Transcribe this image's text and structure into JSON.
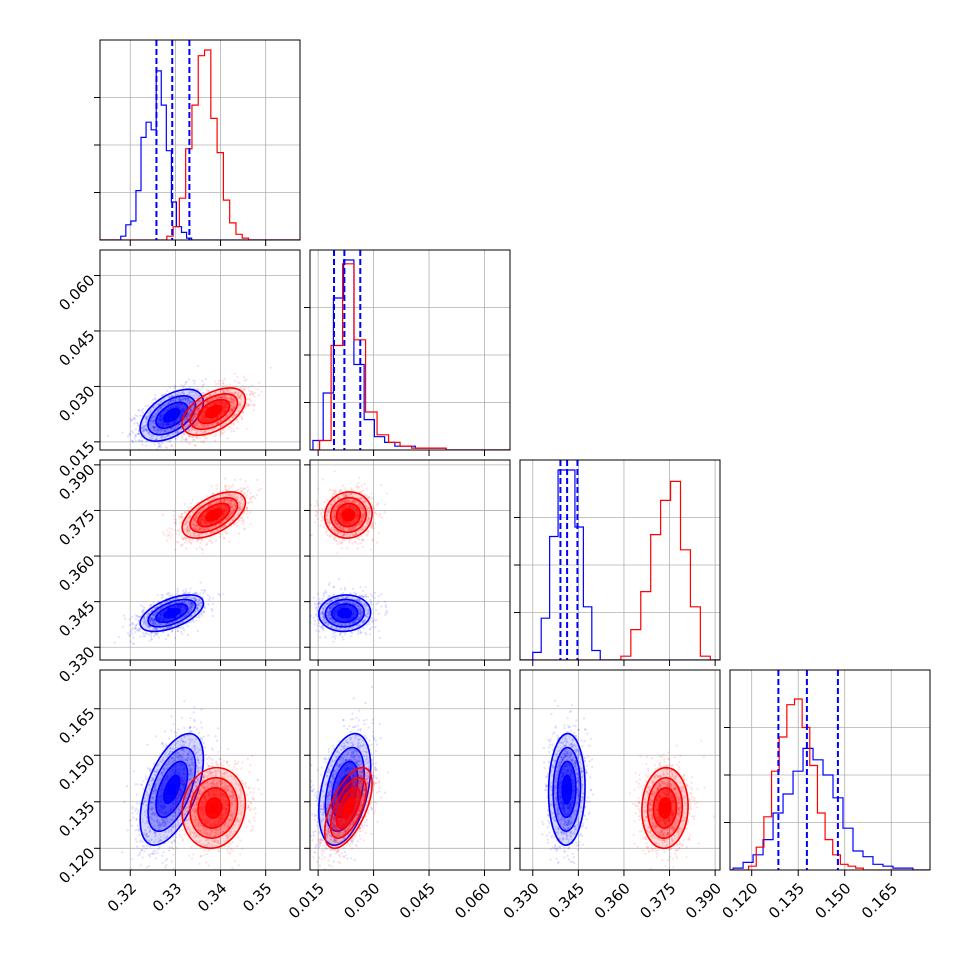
{
  "chart_data": {
    "type": "corner",
    "params": 4,
    "colors": {
      "a": "#0000ff",
      "b": "#ff0000",
      "grid": "#b0b0b0",
      "axes": "#000000"
    },
    "ranges": [
      [
        0.3133,
        0.3576
      ],
      [
        0.0128,
        0.0669
      ],
      [
        0.3258,
        0.3916
      ],
      [
        0.113,
        0.1775
      ]
    ],
    "ticks": [
      {
        "values": [
          0.32,
          0.33,
          0.34,
          0.35
        ],
        "labels": [
          "0.32",
          "0.33",
          "0.34",
          "0.35"
        ]
      },
      {
        "values": [
          0.015,
          0.03,
          0.045,
          0.06
        ],
        "labels": [
          "0.015",
          "0.030",
          "0.045",
          "0.060"
        ]
      },
      {
        "values": [
          0.33,
          0.345,
          0.36,
          0.375,
          0.39
        ],
        "labels": [
          "0.330",
          "0.345",
          "0.360",
          "0.375",
          "0.390"
        ]
      },
      {
        "values": [
          0.12,
          0.135,
          0.15,
          0.165
        ],
        "labels": [
          "0.120",
          "0.135",
          "0.150",
          "0.165"
        ]
      }
    ],
    "quantiles": [
      [
        0.3258,
        0.3293,
        0.3331
      ],
      [
        0.0193,
        0.0221,
        0.0264
      ],
      [
        0.3391,
        0.3413,
        0.3447
      ],
      [
        0.1286,
        0.1378,
        0.1478
      ]
    ],
    "series": [
      {
        "id": "a",
        "means": [
          0.3292,
          0.0222,
          0.3412,
          0.139
        ],
        "sds": [
          0.0035,
          0.0035,
          0.003,
          0.009
        ],
        "hist": [
          {
            "edges": [
              0.3179,
              0.3336
            ],
            "counts": [
              0.02,
              0.08,
              0.1,
              0.26,
              0.54,
              0.62,
              0.58,
              0.89,
              0.71,
              0.47,
              0.2,
              0.07,
              0.04,
              0.01
            ]
          },
          {
            "edges": [
              0.0136,
              0.0496
            ],
            "counts": [
              0.05,
              0.3,
              0.8,
              1.0,
              0.45,
              0.16,
              0.07,
              0.04,
              0.02,
              0.02,
              0.01,
              0.01,
              0.01
            ]
          },
          {
            "edges": [
              0.33,
              0.3522
            ],
            "counts": [
              0.04,
              0.22,
              0.65,
              1.0,
              1.0,
              0.7,
              0.28,
              0.05
            ]
          },
          {
            "edges": [
              0.114,
              0.172
            ],
            "counts": [
              0.01,
              0.04,
              0.08,
              0.16,
              0.3,
              0.4,
              0.52,
              0.64,
              0.58,
              0.5,
              0.38,
              0.22,
              0.1,
              0.07,
              0.03,
              0.02,
              0.01,
              0.01
            ]
          }
        ],
        "pairs": [
          {
            "i": 1,
            "j": 0,
            "r": 0.5
          },
          {
            "i": 2,
            "j": 0,
            "r": 0.55
          },
          {
            "i": 2,
            "j": 1,
            "r": 0.05
          },
          {
            "i": 3,
            "j": 0,
            "r": 0.55
          },
          {
            "i": 3,
            "j": 1,
            "r": 0.4
          },
          {
            "i": 3,
            "j": 2,
            "r": 0.05
          }
        ]
      },
      {
        "id": "b",
        "means": [
          0.3385,
          0.0232,
          0.3735,
          0.133
        ],
        "sds": [
          0.0035,
          0.0032,
          0.0038,
          0.0065
        ],
        "hist": [
          {
            "edges": [
              0.3281,
              0.3462
            ],
            "counts": [
              0.02,
              0.07,
              0.22,
              0.48,
              0.71,
              0.97,
              1.0,
              0.64,
              0.46,
              0.21,
              0.09,
              0.03,
              0.01
            ]
          },
          {
            "edges": [
              0.0154,
              0.0496
            ],
            "counts": [
              0.05,
              0.55,
              0.98,
              0.58,
              0.2,
              0.08,
              0.04,
              0.02,
              0.01,
              0.01,
              0.01
            ]
          },
          {
            "edges": [
              0.359,
              0.3884
            ],
            "counts": [
              0.02,
              0.16,
              0.36,
              0.66,
              0.84,
              0.94,
              0.58,
              0.28,
              0.02
            ]
          },
          {
            "edges": [
              0.119,
              0.156
            ],
            "counts": [
              0.02,
              0.12,
              0.28,
              0.52,
              0.7,
              0.87,
              0.9,
              0.75,
              0.55,
              0.3,
              0.16,
              0.08,
              0.03,
              0.02,
              0.01
            ]
          }
        ],
        "pairs": [
          {
            "i": 1,
            "j": 0,
            "r": 0.5
          },
          {
            "i": 2,
            "j": 0,
            "r": 0.55
          },
          {
            "i": 2,
            "j": 1,
            "r": 0.05
          },
          {
            "i": 3,
            "j": 0,
            "r": 0.1
          },
          {
            "i": 3,
            "j": 1,
            "r": 0.6
          },
          {
            "i": 3,
            "j": 2,
            "r": 0.05
          }
        ]
      }
    ],
    "contour_sigmas": [
      0.5,
      1.0,
      1.5,
      2.0
    ],
    "grid": true,
    "legend": "none"
  }
}
